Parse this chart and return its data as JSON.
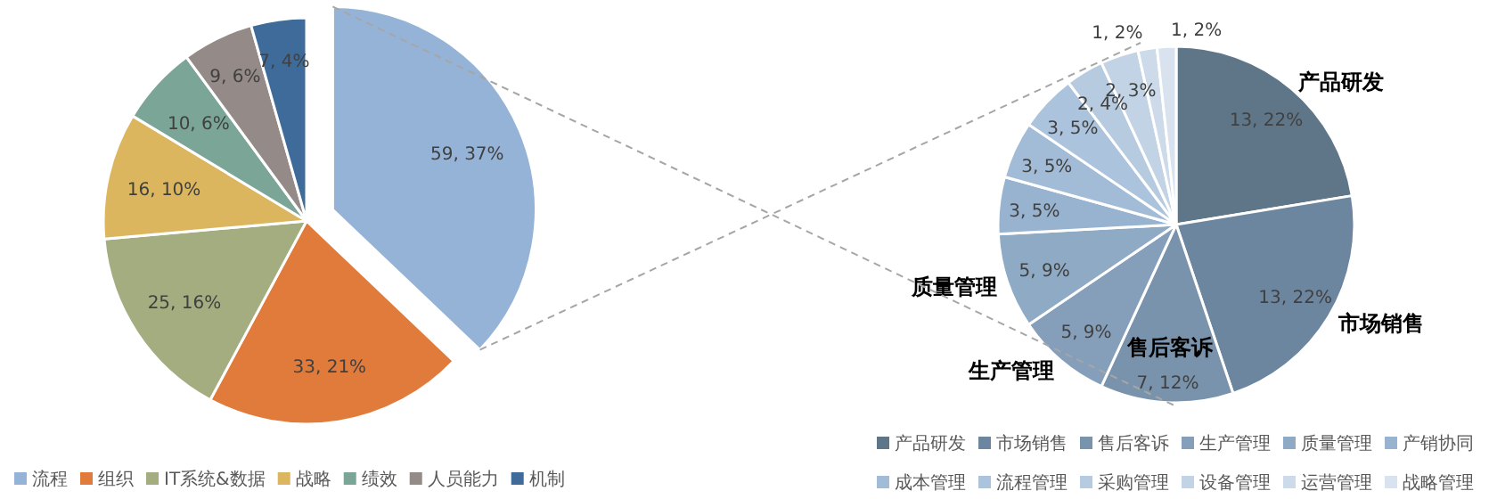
{
  "chart_data": [
    {
      "type": "pie",
      "categories": [
        "流程",
        "组织",
        "IT系统&数据",
        "战略",
        "绩效",
        "人员能力",
        "机制"
      ],
      "values": [
        59,
        33,
        25,
        16,
        10,
        9,
        7
      ],
      "colors": [
        "#95b3d7",
        "#e07b3c",
        "#a3ad7f",
        "#dbb65e",
        "#7aa597",
        "#948a88",
        "#3e6b99"
      ],
      "value_labels": [
        "59, 37%",
        "33, 21%",
        "25, 16%",
        "16, 10%",
        "10, 6%",
        "9, 6%",
        "7, 4%"
      ],
      "legend": "bottom"
    },
    {
      "type": "pie",
      "categories": [
        "产品研发",
        "市场销售",
        "售后客诉",
        "生产管理",
        "质量管理",
        "产销协同",
        "成本管理",
        "流程管理",
        "采购管理",
        "设备管理",
        "运营管理",
        "战略管理"
      ],
      "values": [
        13,
        13,
        7,
        5,
        5,
        3,
        3,
        3,
        2,
        2,
        1,
        1
      ],
      "colors": [
        "#5f7689",
        "#6d86a0",
        "#7a93ac",
        "#859fbb",
        "#8eaac5",
        "#97b3d0",
        "#a2bcd8",
        "#abc3dc",
        "#b6cbe0",
        "#c2d3e5",
        "#ccdaea",
        "#d8e3ef"
      ],
      "value_labels": [
        "13, 22%",
        "13, 22%",
        "7, 12%",
        "5, 9%",
        "5, 9%",
        "3, 5%",
        "3, 5%",
        "3, 5%",
        "2, 4%",
        "2, 3%",
        "1, 2%",
        "1, 2%"
      ],
      "annotations": [
        "产品研发",
        "市场销售",
        "售后客诉",
        "生产管理",
        "质量管理"
      ],
      "legend": "bottom"
    }
  ]
}
